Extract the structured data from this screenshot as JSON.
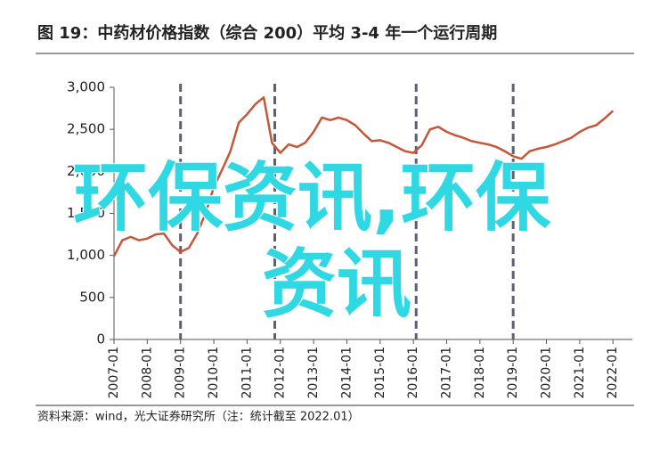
{
  "chart_data": {
    "type": "line",
    "title": "图 19：中药材价格指数（综合 200）平均 3-4 年一个运行周期",
    "source": "资料来源：wind，光大证券研究所（注：统计截至 2022.01）",
    "watermark_lines": [
      "环保资讯,环保",
      "资讯"
    ],
    "x": [
      "2007-01",
      "2007-04",
      "2007-07",
      "2007-10",
      "2008-01",
      "2008-04",
      "2008-07",
      "2008-10",
      "2009-01",
      "2009-04",
      "2009-07",
      "2009-10",
      "2010-01",
      "2010-04",
      "2010-07",
      "2010-10",
      "2011-01",
      "2011-04",
      "2011-07",
      "2011-10",
      "2012-01",
      "2012-04",
      "2012-07",
      "2012-10",
      "2013-01",
      "2013-04",
      "2013-07",
      "2013-10",
      "2014-01",
      "2014-04",
      "2014-07",
      "2014-10",
      "2015-01",
      "2015-04",
      "2015-07",
      "2015-10",
      "2016-01",
      "2016-04",
      "2016-07",
      "2016-10",
      "2017-01",
      "2017-04",
      "2017-07",
      "2017-10",
      "2018-01",
      "2018-04",
      "2018-07",
      "2018-10",
      "2019-01",
      "2019-04",
      "2019-07",
      "2019-10",
      "2020-01",
      "2020-04",
      "2020-07",
      "2020-10",
      "2021-01",
      "2021-04",
      "2021-07",
      "2021-10",
      "2022-01"
    ],
    "series": [
      {
        "color": "#c4573a",
        "values": [
          990,
          1180,
          1220,
          1180,
          1200,
          1250,
          1260,
          1120,
          1040,
          1090,
          1260,
          1500,
          1810,
          2020,
          2240,
          2580,
          2680,
          2800,
          2880,
          2340,
          2220,
          2320,
          2290,
          2340,
          2470,
          2640,
          2610,
          2640,
          2610,
          2550,
          2450,
          2360,
          2370,
          2340,
          2290,
          2240,
          2220,
          2310,
          2500,
          2530,
          2470,
          2430,
          2400,
          2360,
          2340,
          2320,
          2290,
          2240,
          2180,
          2150,
          2240,
          2270,
          2290,
          2320,
          2360,
          2400,
          2470,
          2520,
          2550,
          2630,
          2720
        ]
      }
    ],
    "cycle_lines": [
      "2009-01",
      "2011-11",
      "2016-02",
      "2019-01"
    ],
    "cycle_line_color": "#5b5f78",
    "xlim": [
      "2007-01",
      "2022-08"
    ],
    "xticks": [
      "2007-01",
      "2008-01",
      "2009-01",
      "2010-01",
      "2011-01",
      "2012-01",
      "2013-01",
      "2014-01",
      "2015-01",
      "2016-01",
      "2017-01",
      "2018-01",
      "2019-01",
      "2020-01",
      "2021-01",
      "2022-01"
    ],
    "ylim": [
      0,
      3000
    ],
    "yticks": [
      0,
      500,
      {
        "value": 1000,
        "label": "1,000"
      },
      {
        "value": 1500,
        "label": "1,500"
      },
      {
        "value": 2000,
        "label": "2,000"
      },
      {
        "value": 2500,
        "label": "2,500"
      },
      {
        "value": 3000,
        "label": "3,000"
      }
    ]
  }
}
